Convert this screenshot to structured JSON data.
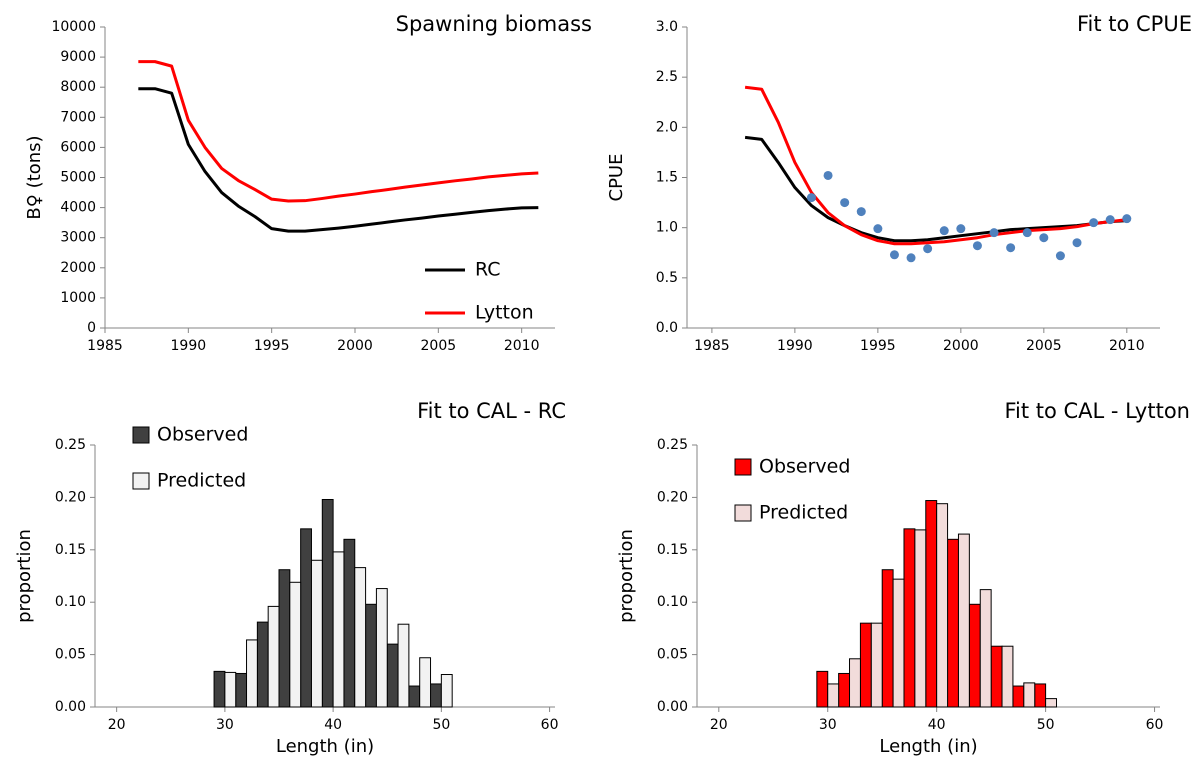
{
  "chart_data": [
    {
      "type": "line",
      "title": "Spawning biomass",
      "ylabel": "B♀ (tons)",
      "x": [
        1987,
        1988,
        1989,
        1990,
        1991,
        1992,
        1993,
        1994,
        1995,
        1996,
        1997,
        1998,
        1999,
        2000,
        2001,
        2002,
        2003,
        2004,
        2005,
        2006,
        2007,
        2008,
        2009,
        2010,
        2011
      ],
      "series": [
        {
          "name": "RC",
          "color": "#000000",
          "values": [
            7950,
            7950,
            7800,
            6100,
            5200,
            4500,
            4050,
            3700,
            3300,
            3220,
            3220,
            3270,
            3320,
            3380,
            3450,
            3520,
            3590,
            3650,
            3720,
            3780,
            3840,
            3900,
            3950,
            3990,
            4000
          ]
        },
        {
          "name": "Lytton",
          "color": "#ff0000",
          "values": [
            8850,
            8850,
            8700,
            6900,
            6000,
            5300,
            4900,
            4600,
            4280,
            4220,
            4230,
            4300,
            4380,
            4450,
            4530,
            4600,
            4680,
            4750,
            4820,
            4890,
            4950,
            5020,
            5070,
            5120,
            5150
          ]
        }
      ],
      "xlim": [
        1985,
        2012
      ],
      "xticks": [
        1985,
        1990,
        1995,
        2000,
        2005,
        2010
      ],
      "ylim": [
        0,
        10000
      ],
      "yticks": [
        0,
        1000,
        2000,
        3000,
        4000,
        5000,
        6000,
        7000,
        8000,
        9000,
        10000
      ],
      "grid": false,
      "legend": "lower right"
    },
    {
      "type": "line",
      "title": "Fit to CPUE",
      "ylabel": "CPUE",
      "x": [
        1987,
        1988,
        1989,
        1990,
        1991,
        1992,
        1993,
        1994,
        1995,
        1996,
        1997,
        1998,
        1999,
        2000,
        2001,
        2002,
        2003,
        2004,
        2005,
        2006,
        2007,
        2008,
        2009,
        2010
      ],
      "series": [
        {
          "color": "#000000",
          "values": [
            1.9,
            1.88,
            1.65,
            1.4,
            1.22,
            1.1,
            1.02,
            0.95,
            0.9,
            0.87,
            0.87,
            0.88,
            0.9,
            0.92,
            0.94,
            0.96,
            0.98,
            0.99,
            1.0,
            1.01,
            1.02,
            1.04,
            1.06,
            1.07
          ]
        },
        {
          "color": "#ff0000",
          "values": [
            2.4,
            2.38,
            2.05,
            1.65,
            1.35,
            1.15,
            1.02,
            0.93,
            0.87,
            0.84,
            0.84,
            0.85,
            0.86,
            0.88,
            0.9,
            0.93,
            0.95,
            0.97,
            0.98,
            0.99,
            1.01,
            1.04,
            1.06,
            1.08
          ]
        },
        {
          "type": "scatter",
          "color": "#4f81bd",
          "x": [
            1991,
            1992,
            1993,
            1994,
            1995,
            1996,
            1997,
            1998,
            1999,
            2000,
            2001,
            2002,
            2003,
            2004,
            2005,
            2006,
            2007,
            2008,
            2009,
            2010
          ],
          "values": [
            1.3,
            1.52,
            1.25,
            1.16,
            0.99,
            0.73,
            0.7,
            0.79,
            0.97,
            0.99,
            0.82,
            0.95,
            0.8,
            0.95,
            0.9,
            0.72,
            0.85,
            1.05,
            1.08,
            1.09
          ]
        }
      ],
      "xlim": [
        1983.5,
        2012
      ],
      "xticks": [
        1985,
        1990,
        1995,
        2000,
        2005,
        2010
      ],
      "ylim": [
        0,
        3
      ],
      "yticks": [
        {
          "value": 0,
          "label": "0.0"
        },
        0.5,
        {
          "value": 1,
          "label": "1.0"
        },
        1.5,
        {
          "value": 2,
          "label": "2.0"
        },
        2.5,
        {
          "value": 3,
          "label": "3.0"
        }
      ],
      "grid": false
    },
    {
      "type": "histogram",
      "title": "Fit to CAL - RC",
      "xlabel": "Length (in)",
      "ylabel": "proportion",
      "bins": [
        29,
        31,
        33,
        35,
        37,
        39,
        41,
        43,
        45,
        47,
        49,
        51
      ],
      "series": [
        {
          "name": "Observed",
          "color": "#404040",
          "values": [
            0.034,
            0.032,
            0.081,
            0.131,
            0.17,
            0.198,
            0.16,
            0.098,
            0.06,
            0.02,
            0.022
          ]
        },
        {
          "name": "Predicted",
          "color": "#f2f2f2",
          "values": [
            0.033,
            0.064,
            0.096,
            0.119,
            0.14,
            0.148,
            0.133,
            0.113,
            0.079,
            0.047,
            0.031
          ]
        }
      ],
      "xlim": [
        18,
        60.5
      ],
      "xticks": [
        20,
        30,
        40,
        50,
        60
      ],
      "ylim": [
        0,
        0.25
      ],
      "yticks": [
        {
          "value": 0,
          "label": "0.00"
        },
        0.05,
        {
          "value": 0.1,
          "label": "0.10"
        },
        0.15,
        {
          "value": 0.2,
          "label": "0.20"
        },
        0.25
      ],
      "grid": false,
      "legend": "upper left"
    },
    {
      "type": "histogram",
      "title": "Fit to CAL - Lytton",
      "xlabel": "Length (in)",
      "ylabel": "proportion",
      "bins": [
        29,
        31,
        33,
        35,
        37,
        39,
        41,
        43,
        45,
        47,
        49,
        51
      ],
      "series": [
        {
          "name": "Observed",
          "color": "#ff0000",
          "values": [
            0.034,
            0.032,
            0.08,
            0.131,
            0.17,
            0.197,
            0.16,
            0.098,
            0.058,
            0.02,
            0.022
          ]
        },
        {
          "name": "Predicted",
          "color": "#f2dcdb",
          "values": [
            0.022,
            0.046,
            0.08,
            0.122,
            0.169,
            0.194,
            0.165,
            0.112,
            0.058,
            0.023,
            0.008
          ]
        }
      ],
      "xlim": [
        18,
        60.5
      ],
      "xticks": [
        20,
        30,
        40,
        50,
        60
      ],
      "ylim": [
        0,
        0.25
      ],
      "yticks": [
        {
          "value": 0,
          "label": "0.00"
        },
        0.05,
        {
          "value": 0.1,
          "label": "0.10"
        },
        0.15,
        {
          "value": 0.2,
          "label": "0.20"
        },
        0.25
      ],
      "grid": false,
      "legend": "upper left"
    }
  ]
}
